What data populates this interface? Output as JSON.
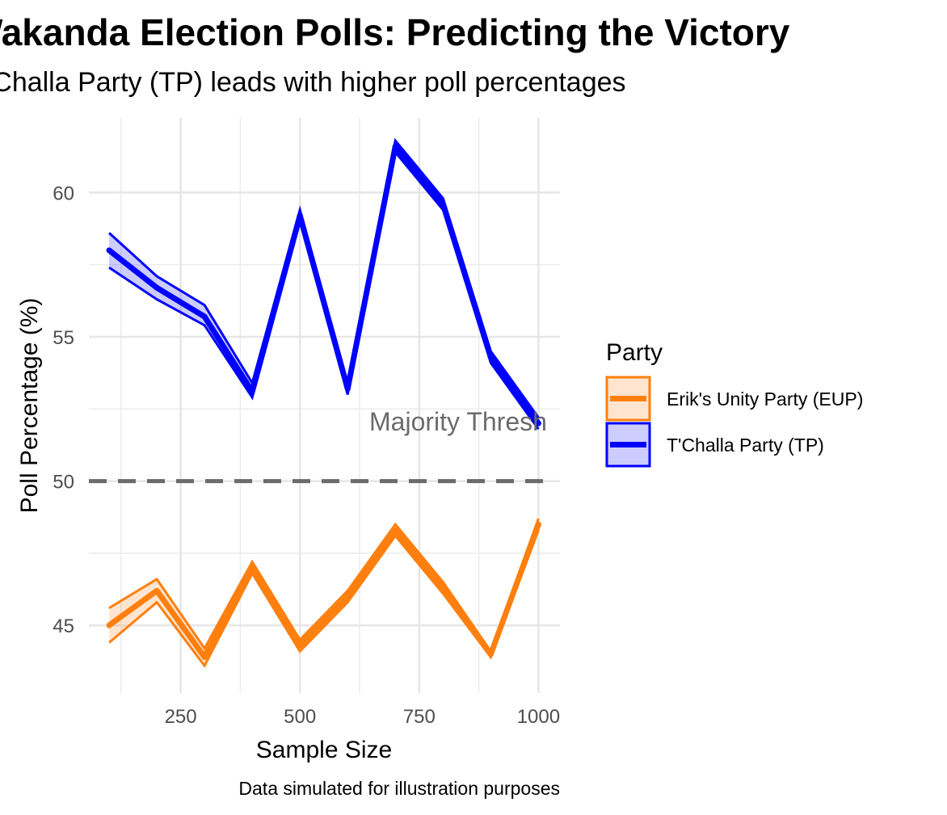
{
  "chart_data": {
    "type": "line",
    "title": "Wakanda Election Polls: Predicting the Victory",
    "subtitle": "T'Challa Party (TP) leads with higher poll percentages",
    "xlabel": "Sample Size",
    "ylabel": "Poll Percentage (%)",
    "caption": "Data simulated for illustration purposes",
    "xlim": [
      100,
      1000
    ],
    "ylim": [
      43,
      62.5
    ],
    "x_ticks": [
      "250",
      "500",
      "750",
      "1000"
    ],
    "y_ticks": [
      "45",
      "50",
      "55",
      "60"
    ],
    "grid": true,
    "legend": {
      "title": "Party",
      "position": "right"
    },
    "reference_line": {
      "y": 50,
      "label": "Majority Thresh",
      "style": "dashed",
      "color": "#6b6b6b"
    },
    "x": [
      100,
      200,
      300,
      400,
      500,
      600,
      700,
      800,
      900,
      1000
    ],
    "series": [
      {
        "name": "Erik's Unity Party (EUP)",
        "color": "#ff7f0e",
        "values": [
          45.0,
          46.2,
          43.9,
          47.0,
          44.3,
          46.0,
          48.3,
          46.3,
          44.0,
          48.5
        ],
        "lower": [
          44.4,
          45.8,
          43.6,
          46.8,
          44.1,
          45.8,
          48.1,
          46.1,
          43.9,
          48.3
        ],
        "upper": [
          45.6,
          46.6,
          44.2,
          47.2,
          44.5,
          46.2,
          48.5,
          46.5,
          44.1,
          48.7
        ]
      },
      {
        "name": "T'Challa Party (TP)",
        "color": "#0000ff",
        "values": [
          58.0,
          56.7,
          55.7,
          53.1,
          59.2,
          53.2,
          61.6,
          59.6,
          54.3,
          52.0
        ],
        "lower": [
          57.4,
          56.3,
          55.4,
          52.9,
          59.0,
          53.0,
          61.4,
          59.4,
          54.1,
          51.8
        ],
        "upper": [
          58.6,
          57.1,
          56.1,
          53.4,
          59.4,
          53.4,
          61.8,
          59.8,
          54.5,
          52.2
        ]
      }
    ]
  }
}
